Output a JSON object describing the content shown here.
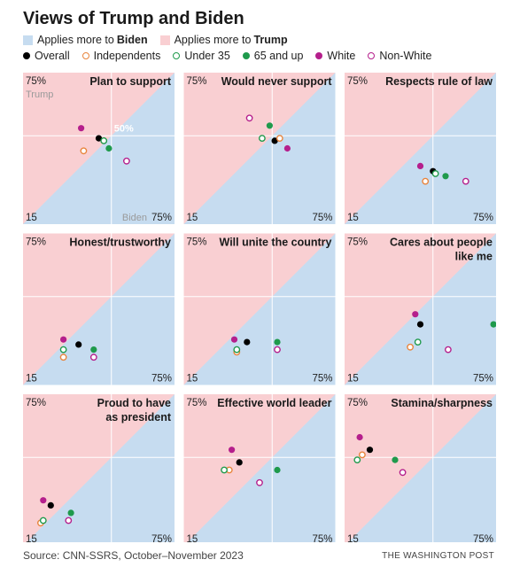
{
  "title": "Views of Trump and Biden",
  "legend": {
    "regions": [
      {
        "key": "biden",
        "prefix": "Applies more to",
        "name": "Biden",
        "color": "#c6dcf0"
      },
      {
        "key": "trump",
        "prefix": "Applies more to",
        "name": "Trump",
        "color": "#f9cfd2"
      }
    ],
    "groups": [
      {
        "key": "overall",
        "label": "Overall",
        "color": "#000000",
        "filled": true
      },
      {
        "key": "independents",
        "label": "Independents",
        "color": "#e8843c",
        "filled": false
      },
      {
        "key": "under35",
        "label": "Under 35",
        "color": "#1f9a4c",
        "filled": false
      },
      {
        "key": "over65",
        "label": "65 and up",
        "color": "#1f9a4c",
        "filled": true
      },
      {
        "key": "white",
        "label": "White",
        "color": "#b51f8c",
        "filled": true
      },
      {
        "key": "nonwhite",
        "label": "Non-White",
        "color": "#b51f8c",
        "filled": false
      }
    ]
  },
  "axis": {
    "min_label": "15",
    "max_label": "75%",
    "mid_label": "50%",
    "x_name": "Biden",
    "y_name": "Trump"
  },
  "chart_data": {
    "type": "scatter",
    "x_axis": "Biden",
    "y_axis": "Trump",
    "xlim": [
      15,
      75
    ],
    "ylim": [
      15,
      75
    ],
    "reference_lines": {
      "x": 50,
      "y": 50
    },
    "diagonal": "x = y",
    "panels": [
      {
        "title": [
          "Plan to support"
        ],
        "points": {
          "overall": [
            45,
            49
          ],
          "independents": [
            39,
            44
          ],
          "under35": [
            47,
            48
          ],
          "over65": [
            49,
            45
          ],
          "white": [
            38,
            53
          ],
          "nonwhite": [
            56,
            40
          ]
        }
      },
      {
        "title": [
          "Would never support"
        ],
        "points": {
          "overall": [
            51,
            48
          ],
          "independents": [
            53,
            49
          ],
          "under35": [
            46,
            49
          ],
          "over65": [
            49,
            54
          ],
          "white": [
            56,
            45
          ],
          "nonwhite": [
            41,
            57
          ]
        }
      },
      {
        "title": [
          "Respects rule of law"
        ],
        "points": {
          "overall": [
            50,
            36
          ],
          "independents": [
            47,
            32
          ],
          "under35": [
            51,
            35
          ],
          "over65": [
            55,
            34
          ],
          "white": [
            45,
            38
          ],
          "nonwhite": [
            63,
            32
          ]
        }
      },
      {
        "title": [
          "Honest/trustworthy"
        ],
        "points": {
          "overall": [
            37,
            31
          ],
          "independents": [
            31,
            26
          ],
          "under35": [
            31,
            29
          ],
          "over65": [
            43,
            29
          ],
          "white": [
            31,
            33
          ],
          "nonwhite": [
            43,
            26
          ]
        }
      },
      {
        "title": [
          "Will unite the country"
        ],
        "points": {
          "overall": [
            40,
            32
          ],
          "independents": [
            36,
            28
          ],
          "under35": [
            36,
            29
          ],
          "over65": [
            52,
            32
          ],
          "white": [
            35,
            33
          ],
          "nonwhite": [
            52,
            29
          ]
        }
      },
      {
        "title": [
          "Cares about people",
          "like me"
        ],
        "points": {
          "overall": [
            45,
            39
          ],
          "independents": [
            41,
            30
          ],
          "under35": [
            44,
            32
          ],
          "over65": [
            74,
            39
          ],
          "white": [
            43,
            43
          ],
          "nonwhite": [
            56,
            29
          ]
        }
      },
      {
        "title": [
          "Proud to have",
          "as president"
        ],
        "points": {
          "overall": [
            26,
            31
          ],
          "independents": [
            22,
            24
          ],
          "under35": [
            23,
            25
          ],
          "over65": [
            34,
            28
          ],
          "white": [
            23,
            33
          ],
          "nonwhite": [
            33,
            25
          ]
        }
      },
      {
        "title": [
          "Effective world leader"
        ],
        "points": {
          "overall": [
            37,
            48
          ],
          "independents": [
            33,
            45
          ],
          "under35": [
            31,
            45
          ],
          "over65": [
            52,
            45
          ],
          "white": [
            34,
            53
          ],
          "nonwhite": [
            45,
            40
          ]
        }
      },
      {
        "title": [
          "Stamina/sharpness"
        ],
        "points": {
          "overall": [
            25,
            53
          ],
          "independents": [
            22,
            51
          ],
          "under35": [
            20,
            49
          ],
          "over65": [
            35,
            49
          ],
          "white": [
            21,
            58
          ],
          "nonwhite": [
            38,
            44
          ]
        }
      }
    ]
  },
  "source": "Source: CNN-SSRS, October–November 2023",
  "credit": "THE WASHINGTON POST"
}
